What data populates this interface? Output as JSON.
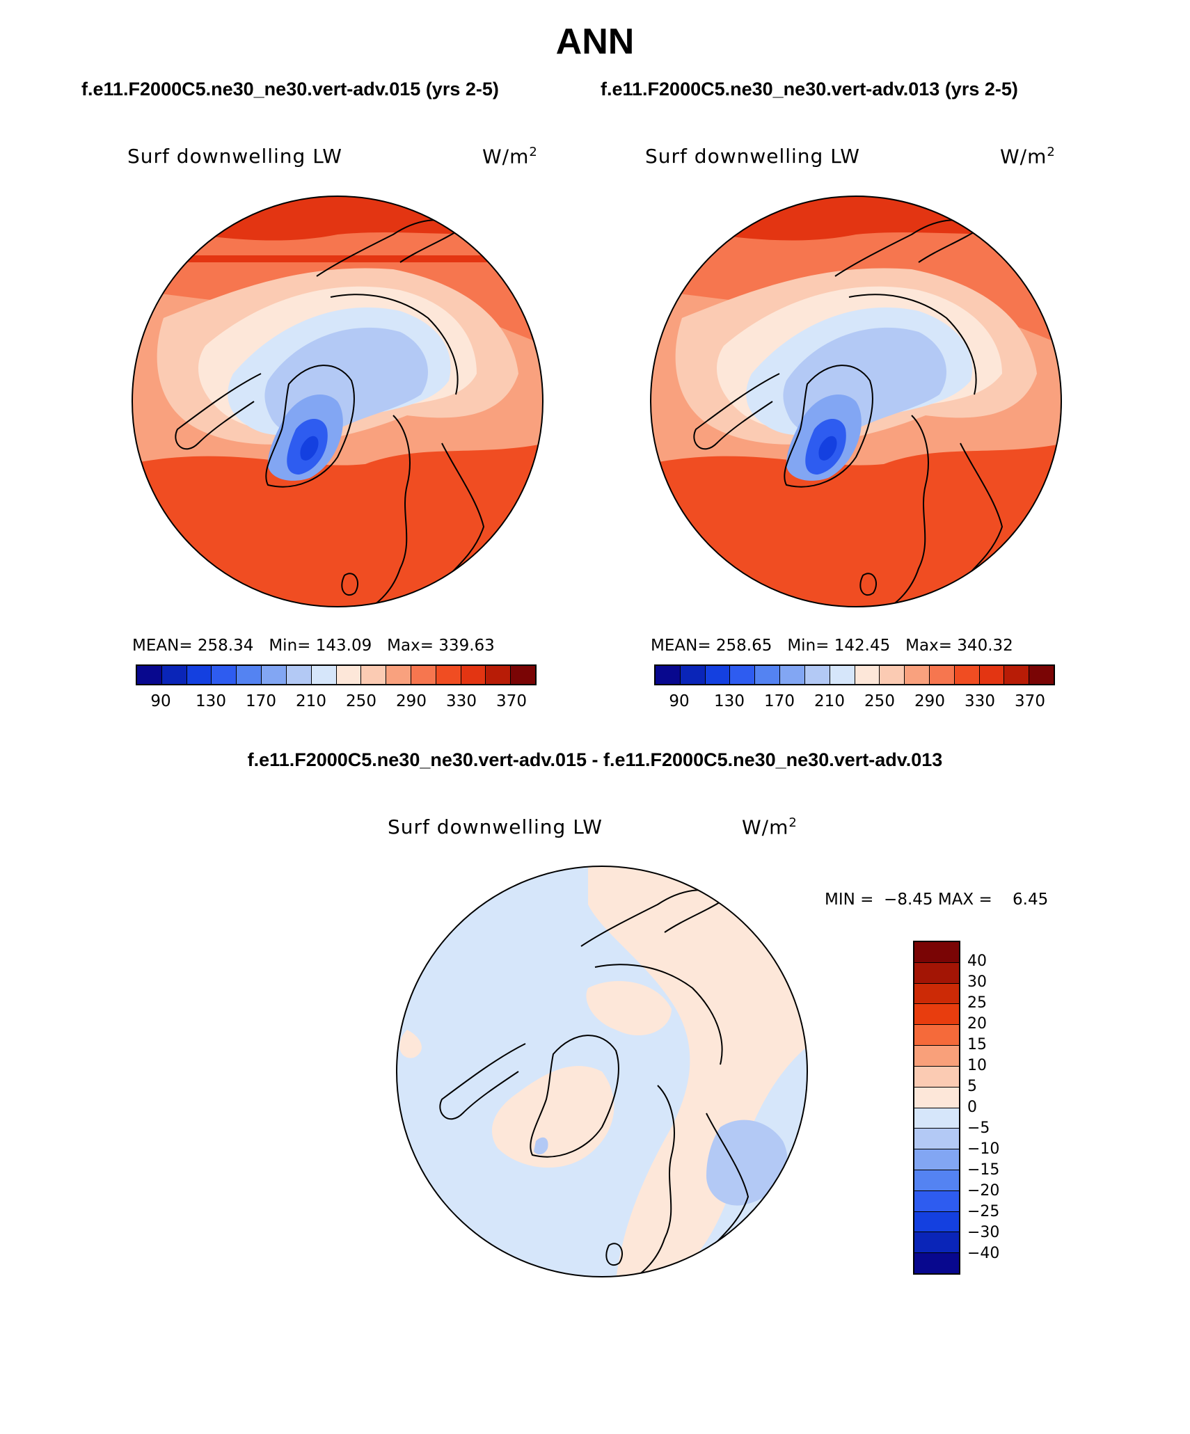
{
  "title": "ANN",
  "subtitle_left": "f.e11.F2000C5.ne30_ne30.vert-adv.015 (yrs 2-5)",
  "subtitle_right": "f.e11.F2000C5.ne30_ne30.vert-adv.013 (yrs 2-5)",
  "diff_title": "f.e11.F2000C5.ne30_ne30.vert-adv.015 - f.e11.F2000C5.ne30_ne30.vert-adv.013",
  "panels": [
    {
      "variable": "Surf downwelling LW",
      "units": "W/m",
      "units_sup": "2",
      "mean_label": "MEAN=",
      "mean": "258.34",
      "min_label": "Min=",
      "min": "143.09",
      "max_label": "Max=",
      "max": "339.63"
    },
    {
      "variable": "Surf downwelling LW",
      "units": "W/m",
      "units_sup": "2",
      "mean_label": "MEAN=",
      "mean": "258.65",
      "min_label": "Min=",
      "min": "142.45",
      "max_label": "Max=",
      "max": "340.32"
    }
  ],
  "diff_panel": {
    "variable": "Surf downwelling LW",
    "units": "W/m",
    "units_sup": "2",
    "min_label": "MIN =",
    "min": "−8.45",
    "max_label": "MAX =",
    "max": "6.45"
  },
  "colorbar_main": {
    "colors": [
      "#08088e",
      "#0a25b8",
      "#1440e0",
      "#2e5cf0",
      "#5483f2",
      "#82a6f3",
      "#b3c9f5",
      "#d6e6fa",
      "#fde7d9",
      "#fbcbb3",
      "#f9a17e",
      "#f6764f",
      "#f04d22",
      "#e33512",
      "#b81c06",
      "#7a0505"
    ],
    "labels": [
      "90",
      "130",
      "170",
      "210",
      "250",
      "290",
      "330",
      "370"
    ]
  },
  "colorbar_diff": {
    "colors": [
      "#7a0505",
      "#a31505",
      "#cc2a06",
      "#e83d0e",
      "#f56a3a",
      "#f9a07a",
      "#fbcbb3",
      "#fde7d9",
      "#d6e6fa",
      "#b3c9f5",
      "#82a6f3",
      "#5483f2",
      "#2e5cf0",
      "#1440e0",
      "#0a25b8",
      "#08088e"
    ],
    "labels": [
      "40",
      "30",
      "25",
      "20",
      "15",
      "10",
      "5",
      "0",
      "−5",
      "−10",
      "−15",
      "−20",
      "−25",
      "−30",
      "−40"
    ]
  }
}
